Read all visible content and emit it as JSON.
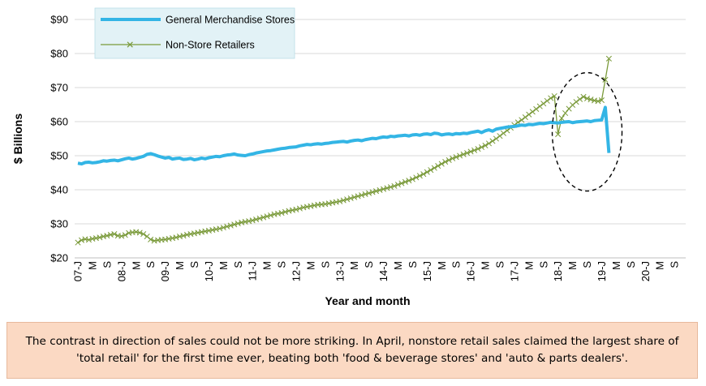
{
  "chart_data": {
    "type": "line",
    "ylabel": "$ Billions",
    "xlabel": "Year and month",
    "ylim": [
      20,
      90
    ],
    "yticks": [
      "$20",
      "$30",
      "$40",
      "$50",
      "$60",
      "$70",
      "$80",
      "$90"
    ],
    "xtick_labels": [
      "07-J",
      "M",
      "S",
      "08-J",
      "M",
      "S",
      "09-J",
      "M",
      "S",
      "10-J",
      "M",
      "S",
      "11-J",
      "M",
      "S",
      "12-J",
      "M",
      "S",
      "13-J",
      "M",
      "S",
      "14-J",
      "M",
      "S",
      "15-J",
      "M",
      "S",
      "16-J",
      "M",
      "S",
      "17-J",
      "M",
      "S",
      "18-J",
      "M",
      "S",
      "19-J",
      "M",
      "S",
      "20-J",
      "M",
      "S"
    ],
    "x_start": "2007-01",
    "legend_position": "top-left",
    "grid": "horizontal",
    "series": [
      {
        "name": "General Merchandise Stores",
        "color": "#33b5e5",
        "values": [
          47.8,
          47.6,
          48.0,
          48.1,
          47.9,
          48.0,
          48.2,
          48.5,
          48.4,
          48.6,
          48.7,
          48.5,
          48.8,
          49.1,
          49.3,
          49.0,
          49.2,
          49.5,
          49.8,
          50.4,
          50.6,
          50.3,
          49.9,
          49.6,
          49.3,
          49.5,
          49.0,
          49.2,
          49.3,
          48.9,
          49.0,
          49.2,
          48.8,
          49.0,
          49.3,
          49.1,
          49.4,
          49.6,
          49.8,
          49.7,
          50.0,
          50.2,
          50.3,
          50.5,
          50.2,
          50.1,
          50.0,
          50.3,
          50.5,
          50.8,
          51.0,
          51.2,
          51.4,
          51.5,
          51.7,
          51.9,
          52.1,
          52.2,
          52.4,
          52.5,
          52.6,
          52.9,
          53.1,
          53.3,
          53.2,
          53.4,
          53.5,
          53.4,
          53.6,
          53.7,
          53.9,
          54.0,
          54.1,
          54.2,
          54.0,
          54.3,
          54.5,
          54.6,
          54.4,
          54.7,
          54.9,
          55.1,
          55.0,
          55.3,
          55.5,
          55.4,
          55.7,
          55.6,
          55.8,
          55.9,
          56.0,
          55.8,
          56.1,
          56.2,
          56.0,
          56.3,
          56.4,
          56.2,
          56.6,
          56.5,
          56.1,
          56.3,
          56.4,
          56.2,
          56.5,
          56.4,
          56.6,
          56.5,
          56.8,
          57.0,
          57.2,
          56.8,
          57.3,
          57.6,
          57.2,
          57.8,
          58.0,
          58.2,
          58.4,
          58.5,
          58.6,
          58.8,
          59.0,
          58.9,
          59.2,
          59.1,
          59.3,
          59.5,
          59.4,
          59.6,
          59.8,
          59.7,
          59.6,
          59.8,
          59.9,
          60.0,
          59.7,
          59.9,
          60.0,
          60.1,
          60.2,
          60.0,
          60.3,
          60.4,
          60.5,
          64.2,
          50.8
        ],
        "style": "thick"
      },
      {
        "name": "Non-Store Retailers",
        "color": "#7a9a3a",
        "values": [
          24.5,
          25.2,
          25.5,
          25.3,
          25.6,
          25.8,
          26.0,
          26.3,
          26.5,
          26.8,
          27.0,
          26.5,
          26.4,
          26.7,
          27.3,
          27.5,
          27.6,
          27.4,
          27.0,
          26.3,
          25.4,
          25.0,
          25.2,
          25.3,
          25.4,
          25.6,
          25.8,
          26.0,
          26.3,
          26.5,
          26.8,
          27.0,
          27.2,
          27.4,
          27.6,
          27.8,
          28.0,
          28.2,
          28.4,
          28.6,
          28.9,
          29.2,
          29.5,
          29.8,
          30.1,
          30.4,
          30.6,
          30.8,
          31.0,
          31.3,
          31.6,
          31.9,
          32.2,
          32.5,
          32.8,
          33.0,
          33.2,
          33.5,
          33.8,
          34.0,
          34.2,
          34.5,
          34.8,
          35.0,
          35.2,
          35.4,
          35.6,
          35.7,
          35.8,
          36.0,
          36.2,
          36.4,
          36.6,
          36.9,
          37.2,
          37.5,
          37.8,
          38.1,
          38.4,
          38.7,
          39.0,
          39.3,
          39.6,
          39.9,
          40.2,
          40.5,
          40.8,
          41.1,
          41.5,
          41.9,
          42.3,
          42.7,
          43.1,
          43.6,
          44.1,
          44.6,
          45.2,
          45.8,
          46.4,
          47.0,
          47.6,
          48.2,
          48.7,
          49.2,
          49.6,
          50.0,
          50.4,
          50.8,
          51.2,
          51.6,
          52.0,
          52.5,
          53.0,
          53.6,
          54.3,
          55.0,
          55.8,
          56.6,
          57.4,
          58.2,
          59.0,
          59.8,
          60.5,
          61.3,
          62.1,
          62.9,
          63.7,
          64.5,
          65.3,
          66.1,
          66.9,
          67.5,
          56.3,
          61.0,
          62.5,
          63.8,
          64.9,
          65.8,
          66.6,
          67.3,
          66.8,
          66.5,
          66.2,
          66.0,
          66.3,
          72.3,
          78.5
        ],
        "style": "x-marker"
      }
    ],
    "annotation": "dashed ellipse highlighting the latest months"
  },
  "caption": "The contrast in direction of sales could not be more striking. In April, nonstore retail sales claimed the largest share of 'total retail' for the first time ever, beating both 'food & beverage stores' and 'auto & parts dealers'."
}
